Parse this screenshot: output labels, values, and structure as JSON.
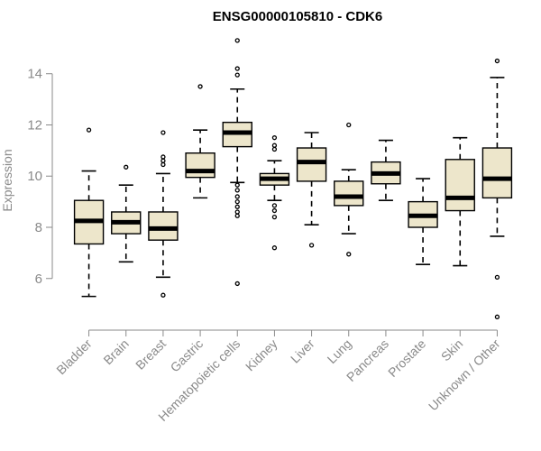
{
  "chart_data": {
    "type": "boxplot",
    "title": "ENSG00000105810 - CDK6",
    "ylabel": "Expression",
    "xlabel": "",
    "ylim": [
      4.3,
      15.4
    ],
    "yticks": [
      6,
      8,
      10,
      12,
      14
    ],
    "colors": {
      "box_fill": "#EDE6CB",
      "box_stroke": "#000000",
      "axis": "#8a8a8a",
      "text": "#8a8a8a"
    },
    "categories": [
      "Bladder",
      "Brain",
      "Breast",
      "Gastric",
      "Hematopoietic cells",
      "Kidney",
      "Liver",
      "Lung",
      "Pancreas",
      "Prostate",
      "Skin",
      "Unknown / Other"
    ],
    "boxes": [
      {
        "category": "Bladder",
        "whisker_low": 5.3,
        "q1": 7.35,
        "median": 8.25,
        "q3": 9.05,
        "whisker_high": 10.2,
        "outliers": [
          11.8
        ]
      },
      {
        "category": "Brain",
        "whisker_low": 6.65,
        "q1": 7.75,
        "median": 8.2,
        "q3": 8.6,
        "whisker_high": 9.65,
        "outliers": [
          10.35
        ]
      },
      {
        "category": "Breast",
        "whisker_low": 6.05,
        "q1": 7.5,
        "median": 7.95,
        "q3": 8.6,
        "whisker_high": 10.1,
        "outliers": [
          5.35,
          10.45,
          10.6,
          10.75,
          11.7
        ]
      },
      {
        "category": "Gastric",
        "whisker_low": 9.15,
        "q1": 9.95,
        "median": 10.2,
        "q3": 10.9,
        "whisker_high": 11.8,
        "outliers": [
          13.5
        ]
      },
      {
        "category": "Hematopoietic cells",
        "whisker_low": 9.75,
        "q1": 11.15,
        "median": 11.7,
        "q3": 12.1,
        "whisker_high": 13.4,
        "outliers": [
          5.8,
          8.45,
          8.6,
          8.8,
          9.0,
          9.2,
          9.45,
          9.65,
          13.95,
          14.2,
          15.3
        ]
      },
      {
        "category": "Kidney",
        "whisker_low": 9.05,
        "q1": 9.65,
        "median": 9.9,
        "q3": 10.1,
        "whisker_high": 10.6,
        "outliers": [
          7.2,
          8.4,
          8.65,
          8.85,
          11.05,
          11.2,
          11.5
        ]
      },
      {
        "category": "Liver",
        "whisker_low": 8.1,
        "q1": 9.8,
        "median": 10.55,
        "q3": 11.1,
        "whisker_high": 11.7,
        "outliers": [
          7.3
        ]
      },
      {
        "category": "Lung",
        "whisker_low": 7.75,
        "q1": 8.85,
        "median": 9.2,
        "q3": 9.8,
        "whisker_high": 10.25,
        "outliers": [
          6.95,
          12.0
        ]
      },
      {
        "category": "Pancreas",
        "whisker_low": 9.05,
        "q1": 9.7,
        "median": 10.1,
        "q3": 10.55,
        "whisker_high": 11.4,
        "outliers": []
      },
      {
        "category": "Prostate",
        "whisker_low": 6.55,
        "q1": 8.0,
        "median": 8.45,
        "q3": 9.0,
        "whisker_high": 9.9,
        "outliers": []
      },
      {
        "category": "Skin",
        "whisker_low": 6.5,
        "q1": 8.65,
        "median": 9.15,
        "q3": 10.65,
        "whisker_high": 11.5,
        "outliers": []
      },
      {
        "category": "Unknown / Other",
        "whisker_low": 7.65,
        "q1": 9.15,
        "median": 9.9,
        "q3": 11.1,
        "whisker_high": 13.85,
        "outliers": [
          4.5,
          6.05,
          14.5
        ]
      }
    ]
  }
}
